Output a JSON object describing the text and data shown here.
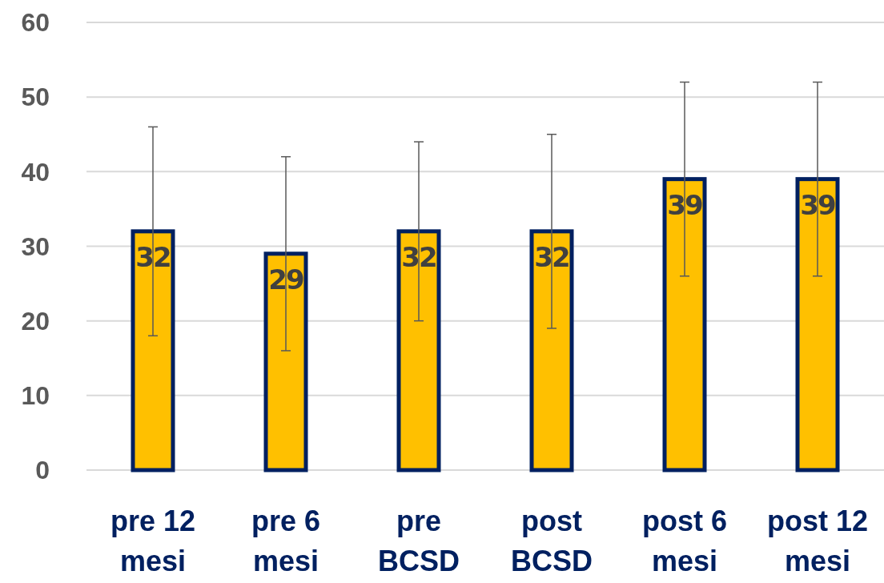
{
  "chart_data": {
    "type": "bar",
    "categories": [
      "pre 12 mesi",
      "pre 6 mesi",
      "pre BCSD",
      "post BCSD",
      "post 6 mesi",
      "post 12 mesi"
    ],
    "values": [
      32,
      29,
      32,
      32,
      39,
      39
    ],
    "errors": [
      14,
      13,
      12,
      13,
      13,
      13
    ],
    "color": "#ffc000",
    "ylim": [
      0,
      60
    ],
    "yticks": [
      0,
      10,
      20,
      30,
      40,
      50,
      60
    ],
    "grid": "y",
    "data_labels": true
  }
}
